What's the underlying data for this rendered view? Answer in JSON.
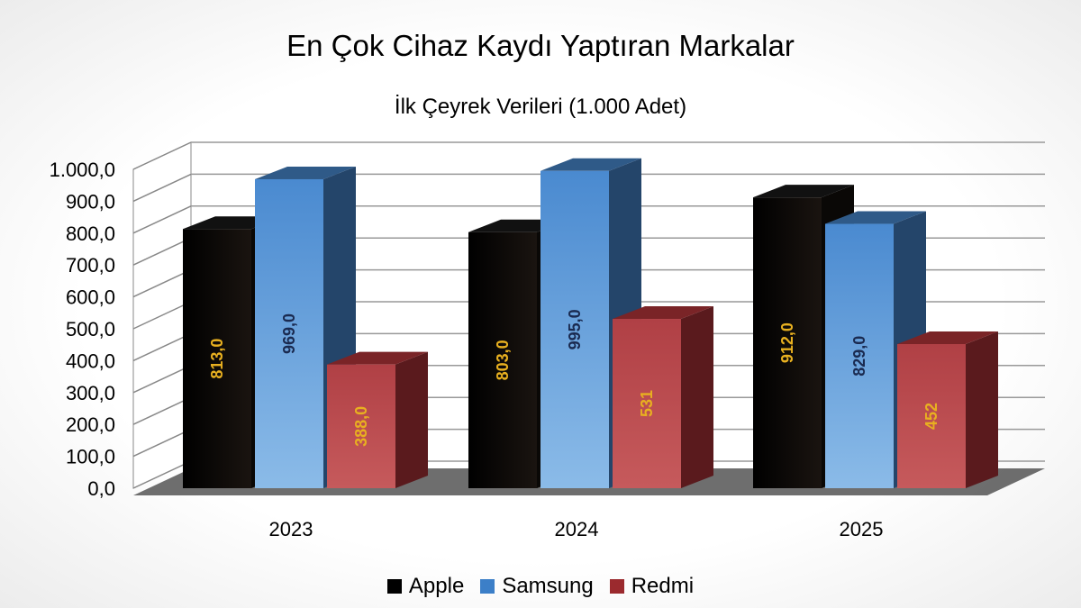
{
  "chart_data": {
    "type": "bar",
    "title": "En Çok Cihaz Kaydı Yaptıran Markalar",
    "subtitle": "İlk Çeyrek Verileri (1.000 Adet)",
    "xlabel": "",
    "ylabel": "",
    "categories": [
      "2023",
      "2024",
      "2025"
    ],
    "series": [
      {
        "name": "Apple",
        "color": "#000000",
        "values": [
          813,
          803,
          912
        ],
        "labels": [
          "813,0",
          "803,0",
          "912,0"
        ]
      },
      {
        "name": "Samsung",
        "color": "#3c7fc8",
        "values": [
          969,
          995,
          829
        ],
        "labels": [
          "969,0",
          "995,0",
          "829,0"
        ]
      },
      {
        "name": "Redmi",
        "color": "#9b2a2e",
        "values": [
          388,
          531,
          452
        ],
        "labels": [
          "388,0",
          "531",
          "452"
        ]
      }
    ],
    "ylim": [
      0,
      1000
    ],
    "yticks": [
      "0,0",
      "100,0",
      "200,0",
      "300,0",
      "400,0",
      "500,0",
      "600,0",
      "700,0",
      "800,0",
      "900,0",
      "1.000,0"
    ],
    "grid": true,
    "legend_position": "bottom",
    "style": "3d-column"
  },
  "legend": [
    {
      "label": "Apple",
      "color": "#000000"
    },
    {
      "label": "Samsung",
      "color": "#3c7fc8"
    },
    {
      "label": "Redmi",
      "color": "#9b2a2e"
    }
  ]
}
